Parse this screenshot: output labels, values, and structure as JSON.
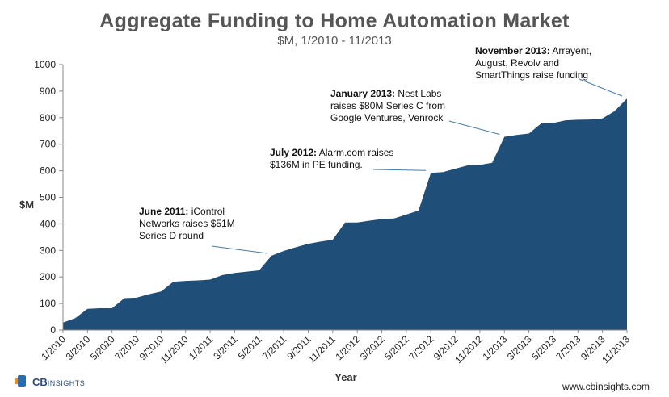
{
  "title": "Aggregate Funding to Home Automation Market",
  "subtitle": "$M, 1/2010 - 11/2013",
  "brand": {
    "logo_mark": "CB",
    "logo_rest": "INSIGHTS",
    "url": "www.cbinsights.com"
  },
  "colors": {
    "area": "#1f4e79",
    "axis": "#888888",
    "leader": "#4a7ba6",
    "logo_blue": "#2a6cb0",
    "logo_orange": "#f08a24"
  },
  "chart_data": {
    "type": "area",
    "title": "Aggregate Funding to Home Automation Market",
    "subtitle": "$M, 1/2010 - 11/2013",
    "xlabel": "Year",
    "ylabel": "$M",
    "ylim": [
      0,
      1000
    ],
    "yticks": [
      0,
      100,
      200,
      300,
      400,
      500,
      600,
      700,
      800,
      900,
      1000
    ],
    "xtick_labels": [
      "1/2010",
      "3/2010",
      "5/2010",
      "7/2010",
      "9/2010",
      "11/2010",
      "1/2011",
      "3/2011",
      "5/2011",
      "7/2011",
      "9/2011",
      "11/2011",
      "1/2012",
      "3/2012",
      "5/2012",
      "7/2012",
      "9/2012",
      "11/2012",
      "1/2013",
      "3/2013",
      "5/2013",
      "7/2013",
      "9/2013",
      "11/2013"
    ],
    "x": [
      "1/2010",
      "2/2010",
      "3/2010",
      "4/2010",
      "5/2010",
      "6/2010",
      "7/2010",
      "8/2010",
      "9/2010",
      "10/2010",
      "11/2010",
      "12/2010",
      "1/2011",
      "2/2011",
      "3/2011",
      "4/2011",
      "5/2011",
      "6/2011",
      "7/2011",
      "8/2011",
      "9/2011",
      "10/2011",
      "11/2011",
      "12/2011",
      "1/2012",
      "2/2012",
      "3/2012",
      "4/2012",
      "5/2012",
      "6/2012",
      "7/2012",
      "8/2012",
      "9/2012",
      "10/2012",
      "11/2012",
      "12/2012",
      "1/2013",
      "2/2013",
      "3/2013",
      "4/2013",
      "5/2013",
      "6/2013",
      "7/2013",
      "8/2013",
      "9/2013",
      "10/2013",
      "11/2013"
    ],
    "values": [
      28,
      45,
      80,
      82,
      82,
      120,
      122,
      135,
      145,
      182,
      185,
      187,
      190,
      207,
      215,
      220,
      225,
      280,
      298,
      312,
      325,
      333,
      340,
      405,
      405,
      412,
      418,
      420,
      435,
      450,
      592,
      595,
      608,
      620,
      622,
      630,
      728,
      735,
      740,
      778,
      780,
      790,
      792,
      793,
      797,
      825,
      872
    ],
    "grid": false,
    "annotations": [
      {
        "bold": "June 2011:",
        "lines": [
          "June 2011: iControl",
          "Networks  raises $51M",
          "Series D round"
        ],
        "point_x": "6/2011"
      },
      {
        "bold": "July 2012:",
        "lines": [
          "July 2012: Alarm.com raises",
          "$136M in PE funding."
        ],
        "point_x": "7/2012"
      },
      {
        "bold": "January 2013:",
        "lines": [
          "January 2013: Nest Labs",
          "raises $80M Series C from",
          "Google Ventures, Venrock"
        ],
        "point_x": "1/2013"
      },
      {
        "bold": "November 2013:",
        "lines": [
          "November 2013: Arrayent,",
          "August, Revolv and",
          "SmartThings raise funding"
        ],
        "point_x": "11/2013"
      }
    ]
  }
}
